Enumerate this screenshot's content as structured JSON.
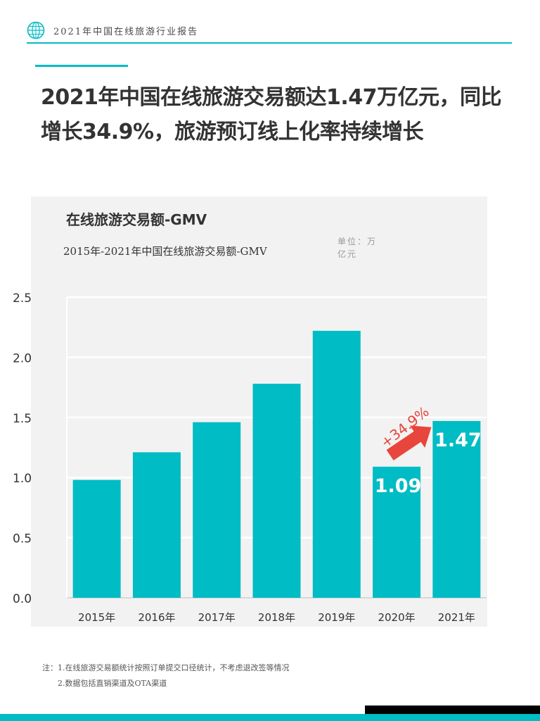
{
  "header": {
    "report_name": "2021年中国在线旅游行业报告"
  },
  "headline": "2021年中国在线旅游交易额达1.47万亿元，同比增长34.9%，旅游预订线上化率持续增长",
  "unit_label": "单位：万亿元",
  "growth_label": "+34.9%",
  "colors": {
    "accent": "#00bcc4",
    "bar": "#00bcc4",
    "arrow": "#e8453c",
    "panel": "#f2f2f2"
  },
  "chart_data": {
    "type": "bar",
    "title": "在线旅游交易额-GMV",
    "subtitle": "2015年-2021年中国在线旅游交易额-GMV",
    "categories": [
      "2015年",
      "2016年",
      "2017年",
      "2018年",
      "2019年",
      "2020年",
      "2021年"
    ],
    "values": [
      0.98,
      1.21,
      1.46,
      1.78,
      2.22,
      1.09,
      1.47
    ],
    "data_labels": [
      "",
      "",
      "",
      "",
      "",
      "1.09",
      "1.47"
    ],
    "ylim": [
      0,
      2.5
    ],
    "yticks": [
      "0.0",
      "0.5",
      "1.0",
      "1.5",
      "2.0",
      "2.5"
    ],
    "grid": true,
    "legend": "none"
  },
  "footnote": {
    "line1": "注：1.在线旅游交易额统计按照订单提交口径统计，不考虑退改签等情况",
    "line2": "2.数据包括直销渠道及OTA渠道"
  }
}
